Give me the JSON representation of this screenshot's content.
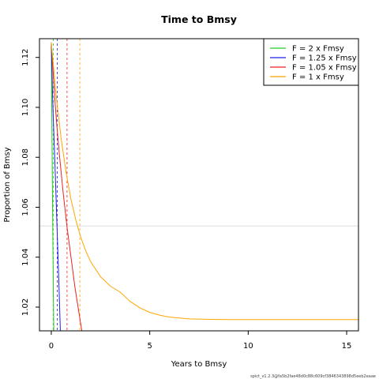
{
  "chart_data": {
    "type": "line",
    "title": "Time to Bmsy",
    "xlabel": "Years to Bmsy",
    "ylabel": "Proportion of Bmsy",
    "xlim": [
      -0.6,
      15.6
    ],
    "ylim": [
      1.0105,
      1.1275
    ],
    "x_ticks": [
      0,
      5,
      10,
      15
    ],
    "y_ticks": [
      1.02,
      1.04,
      1.06,
      1.08,
      1.1,
      1.12
    ],
    "hline": 1.0525,
    "hline_color": "#e0e0e0",
    "legend_position": "top-right",
    "series": [
      {
        "name": "F = 2 x Fmsy",
        "color": "#22cc22",
        "x": [
          0,
          0.02,
          0.05,
          0.08,
          0.11,
          0.14
        ],
        "y": [
          1.126,
          1.104,
          1.074,
          1.046,
          1.022,
          1.0
        ],
        "vline": 0.1
      },
      {
        "name": "F = 1.25 x Fmsy",
        "color": "#1f1fee",
        "x": [
          0,
          0.05,
          0.1,
          0.15,
          0.2,
          0.25,
          0.3,
          0.35,
          0.4,
          0.45,
          0.5
        ],
        "y": [
          1.126,
          1.109,
          1.096,
          1.085,
          1.074,
          1.062,
          1.05,
          1.038,
          1.026,
          1.013,
          1.0
        ],
        "vline": 0.3
      },
      {
        "name": "F = 1.05 x Fmsy",
        "color": "#ee2020",
        "x": [
          0,
          0.1,
          0.2,
          0.3,
          0.4,
          0.5,
          0.6,
          0.7,
          0.8,
          0.9,
          1.0,
          1.1,
          1.2,
          1.3,
          1.4,
          1.5,
          1.6,
          1.7,
          1.8
        ],
        "y": [
          1.126,
          1.113,
          1.101,
          1.091,
          1.082,
          1.074,
          1.066,
          1.059,
          1.052,
          1.046,
          1.04,
          1.034,
          1.028,
          1.023,
          1.018,
          1.013,
          1.008,
          1.003,
          0.999
        ],
        "vline": 0.8
      },
      {
        "name": "F = 1 x Fmsy",
        "color": "#ffa500",
        "x": [
          0,
          0.25,
          0.5,
          0.75,
          1.0,
          1.25,
          1.5,
          1.75,
          2.0,
          2.5,
          3.0,
          3.5,
          4.0,
          4.5,
          5.0,
          5.5,
          6.0,
          7.0,
          8.0,
          9.0,
          10.0,
          11.0,
          12.0,
          13.0,
          14.0,
          15.0,
          15.6
        ],
        "y": [
          1.126,
          1.1045,
          1.0875,
          1.074,
          1.0632,
          1.0547,
          1.0479,
          1.0425,
          1.0382,
          1.0322,
          1.0284,
          1.026,
          1.0223,
          1.0197,
          1.0179,
          1.0168,
          1.016,
          1.0153,
          1.0151,
          1.015,
          1.015,
          1.015,
          1.015,
          1.015,
          1.015,
          1.015,
          1.015
        ],
        "vline": 1.45
      }
    ]
  },
  "footer": {
    "text": "spict_v1.2.3@fa5b2fae48d0c88c609cf3846343898d5eeb2eaae"
  }
}
